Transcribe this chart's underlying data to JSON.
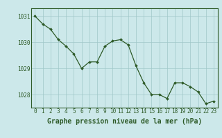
{
  "x": [
    0,
    1,
    2,
    3,
    4,
    5,
    6,
    7,
    8,
    9,
    10,
    11,
    12,
    13,
    14,
    15,
    16,
    17,
    18,
    19,
    20,
    21,
    22,
    23
  ],
  "y": [
    1031.0,
    1030.7,
    1030.5,
    1030.1,
    1029.85,
    1029.55,
    1029.0,
    1029.25,
    1029.25,
    1029.85,
    1030.05,
    1030.1,
    1029.9,
    1029.1,
    1028.45,
    1028.0,
    1028.0,
    1027.85,
    1028.45,
    1028.45,
    1028.3,
    1028.1,
    1027.65,
    1027.75
  ],
  "line_color": "#2d5a27",
  "marker_color": "#2d5a27",
  "bg_color": "#cce8ea",
  "grid_color": "#a0c8c8",
  "axis_label_color": "#2d5a27",
  "xlabel": "Graphe pression niveau de la mer (hPa)",
  "ylim": [
    1027.5,
    1031.3
  ],
  "yticks": [
    1028,
    1029,
    1030,
    1031
  ],
  "xticks": [
    0,
    1,
    2,
    3,
    4,
    5,
    6,
    7,
    8,
    9,
    10,
    11,
    12,
    13,
    14,
    15,
    16,
    17,
    18,
    19,
    20,
    21,
    22,
    23
  ],
  "tick_fontsize": 5.5,
  "xlabel_fontsize": 7.0
}
